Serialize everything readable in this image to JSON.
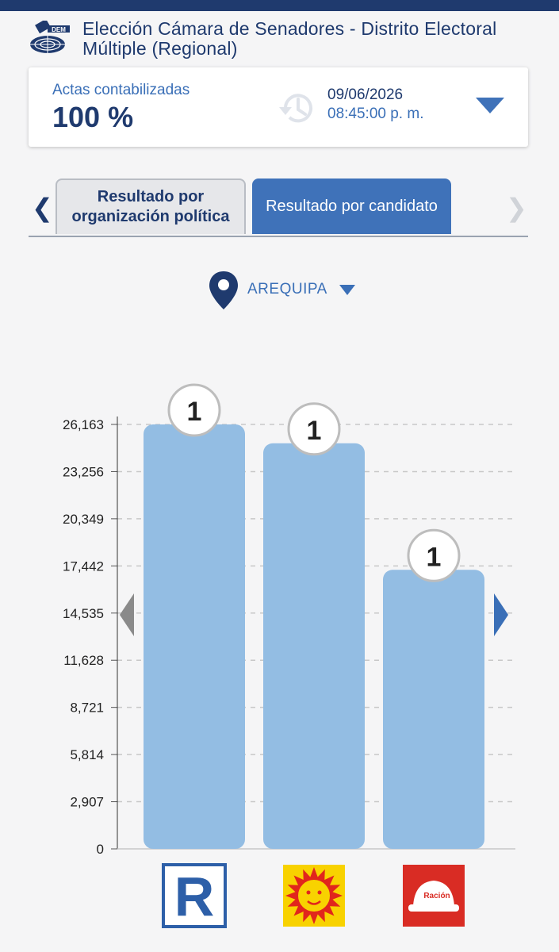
{
  "header": {
    "logo_text": "DEM",
    "title": "Elección Cámara de Senadores - Distrito Electoral Múltiple (Regional)"
  },
  "progress": {
    "label": "Actas contabilizadas",
    "value": "100 %",
    "date": "09/06/2026",
    "time": "08:45:00 p. m."
  },
  "tabs": [
    {
      "label": "Resultado por organización política",
      "active": false
    },
    {
      "label": "Resultado por candidato",
      "active": true
    }
  ],
  "location": {
    "name": "AREQUIPA",
    "icon": "map-pin-icon"
  },
  "colors": {
    "navy": "#1f3a6e",
    "accent_blue": "#3f72b9",
    "bar": "#93bde3",
    "party_r_blue": "#2d5fa8",
    "party_sun_yellow": "#f8d200",
    "party_sun_red": "#e1261c",
    "party_helmet_red": "#d92c24"
  },
  "chart_data": {
    "type": "bar",
    "categories": [
      "R",
      "Sun",
      "Helmet"
    ],
    "values": [
      26163,
      25000,
      17200
    ],
    "badges": [
      "1",
      "1",
      "1"
    ],
    "yticks": [
      "0",
      "2,907",
      "5,814",
      "8,721",
      "11,628",
      "14,535",
      "17,442",
      "20,349",
      "23,256",
      "26,163"
    ],
    "ylim": [
      0,
      26163
    ],
    "grid": true,
    "party_logos": [
      "r-logo-icon",
      "sun-logo-icon",
      "helmet-logo-icon"
    ],
    "helmet_text": "Ración"
  }
}
